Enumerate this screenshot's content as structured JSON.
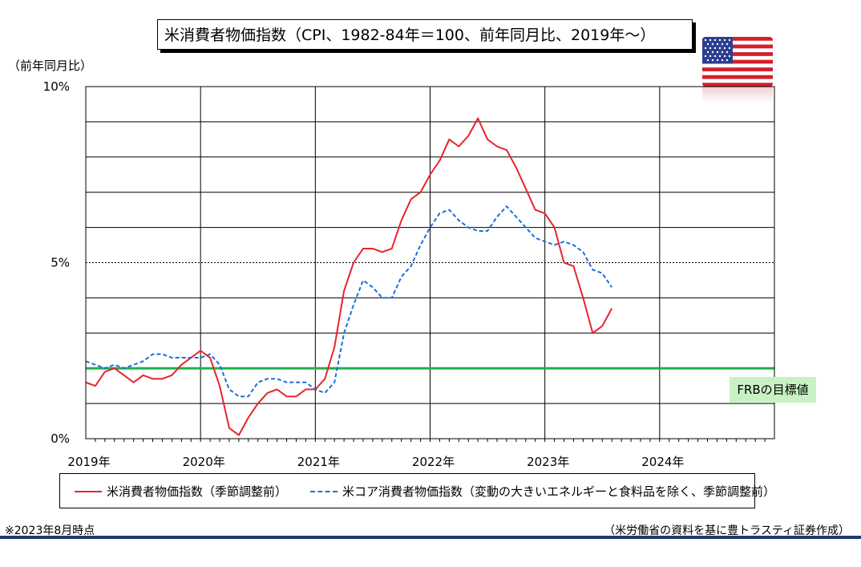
{
  "title": "米消費者物価指数（CPI、1982-84年＝100、前年同月比、2019年～）",
  "unit_label": "（前年同月比）",
  "flag_icon": "us-flag-icon",
  "target_label": "FRBの目標値",
  "note": "※2023年8月時点",
  "source": "（米労働省の資料を基に豊トラスティ証券作成）",
  "legend": {
    "cpi": "米消費者物価指数（季節調整前）",
    "core": "米コア消費者物価指数（変動の大きいエネルギーと食料品を除く、季節調整前）"
  },
  "colors": {
    "cpi": "#e8242b",
    "core": "#1f6fd6",
    "target": "#22b14c",
    "frame": "#1f3a6e"
  },
  "chart_data": {
    "type": "line",
    "title": "米消費者物価指数（CPI、1982-84年＝100、前年同月比、2019年～）",
    "xlabel": "",
    "ylabel": "（前年同月比）",
    "x_ticks": [
      "2019年",
      "2020年",
      "2021年",
      "2022年",
      "2023年",
      "2024年"
    ],
    "y_ticks": [
      "0%",
      "5%",
      "10%"
    ],
    "ylim": [
      0,
      10
    ],
    "xlim": [
      "2019-01",
      "2024-12"
    ],
    "grid": true,
    "target_line": 2.0,
    "series": [
      {
        "name": "米消費者物価指数（季節調整前）",
        "start": "2019-01",
        "values": [
          1.6,
          1.5,
          1.9,
          2.0,
          1.8,
          1.6,
          1.8,
          1.7,
          1.7,
          1.8,
          2.1,
          2.3,
          2.5,
          2.3,
          1.5,
          0.3,
          0.1,
          0.6,
          1.0,
          1.3,
          1.4,
          1.2,
          1.2,
          1.4,
          1.4,
          1.7,
          2.6,
          4.2,
          5.0,
          5.4,
          5.4,
          5.3,
          5.4,
          6.2,
          6.8,
          7.0,
          7.5,
          7.9,
          8.5,
          8.3,
          8.6,
          9.1,
          8.5,
          8.3,
          8.2,
          7.7,
          7.1,
          6.5,
          6.4,
          6.0,
          5.0,
          4.9,
          4.0,
          3.0,
          3.2,
          3.7
        ]
      },
      {
        "name": "米コア消費者物価指数（変動の大きいエネルギーと食料品を除く、季節調整前）",
        "start": "2019-01",
        "values": [
          2.2,
          2.1,
          2.0,
          2.1,
          2.0,
          2.1,
          2.2,
          2.4,
          2.4,
          2.3,
          2.3,
          2.3,
          2.3,
          2.4,
          2.1,
          1.4,
          1.2,
          1.2,
          1.6,
          1.7,
          1.7,
          1.6,
          1.6,
          1.6,
          1.4,
          1.3,
          1.6,
          3.0,
          3.8,
          4.5,
          4.3,
          4.0,
          4.0,
          4.6,
          4.9,
          5.5,
          6.0,
          6.4,
          6.5,
          6.2,
          6.0,
          5.9,
          5.9,
          6.3,
          6.6,
          6.3,
          6.0,
          5.7,
          5.6,
          5.5,
          5.6,
          5.5,
          5.3,
          4.8,
          4.7,
          4.3
        ]
      }
    ]
  }
}
